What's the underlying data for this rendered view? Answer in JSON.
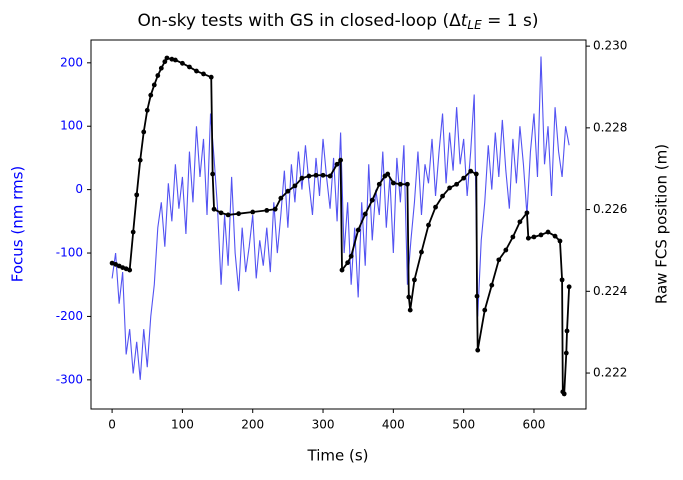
{
  "chart_data": {
    "type": "line",
    "title": {
      "text": "On-sky tests with GS in closed-loop (Δ",
      "var": "t",
      "sub": "LE",
      "end": " = 1 s)"
    },
    "xlabel": "Time (s)",
    "ylabel": "Focus (nm rms)",
    "y2label": "Raw FCS position (m)",
    "y_axis_color": "#0000ff",
    "xlim": [
      -30,
      674
    ],
    "xticks": [
      0,
      100,
      200,
      300,
      400,
      500,
      600
    ],
    "ylim": [
      -346,
      236
    ],
    "yticks": [
      -300,
      -200,
      -100,
      0,
      100,
      200
    ],
    "y2lim": [
      0.22112,
      0.23015
    ],
    "y2ticks": [
      0.222,
      0.224,
      0.226,
      0.228,
      {
        "value": 0.23,
        "label": "0.230"
      }
    ],
    "series": [
      {
        "color": "#3535f0",
        "x": [
          0,
          5,
          10,
          15,
          20,
          25,
          30,
          35,
          40,
          45,
          50,
          55,
          60,
          65,
          70,
          75,
          80,
          85,
          90,
          95,
          100,
          105,
          110,
          115,
          120,
          125,
          130,
          135,
          140,
          145,
          150,
          155,
          160,
          165,
          170,
          175,
          180,
          185,
          190,
          195,
          200,
          205,
          210,
          215,
          220,
          225,
          230,
          235,
          240,
          245,
          250,
          255,
          260,
          265,
          270,
          275,
          280,
          285,
          290,
          295,
          300,
          305,
          310,
          315,
          320,
          325,
          330,
          335,
          340,
          345,
          350,
          355,
          360,
          365,
          370,
          375,
          380,
          385,
          390,
          395,
          400,
          405,
          410,
          415,
          420,
          425,
          430,
          435,
          440,
          445,
          450,
          455,
          460,
          465,
          470,
          475,
          480,
          485,
          490,
          495,
          500,
          505,
          510,
          515,
          520,
          525,
          530,
          535,
          540,
          545,
          550,
          555,
          560,
          565,
          570,
          575,
          580,
          585,
          590,
          595,
          600,
          605,
          610,
          615,
          620,
          625,
          630,
          635,
          640,
          645,
          650
        ],
        "values": [
          -140,
          -100,
          -180,
          -130,
          -260,
          -220,
          -290,
          -240,
          -300,
          -220,
          -280,
          -200,
          -150,
          -60,
          -20,
          -90,
          10,
          -50,
          40,
          -30,
          20,
          -70,
          60,
          -20,
          100,
          20,
          80,
          -40,
          120,
          50,
          -30,
          -150,
          -40,
          -120,
          20,
          -100,
          -160,
          -60,
          -130,
          -90,
          -40,
          -140,
          -80,
          -120,
          -60,
          -130,
          -20,
          -100,
          -40,
          30,
          -60,
          40,
          -20,
          60,
          0,
          70,
          10,
          -40,
          50,
          -10,
          80,
          20,
          -30,
          50,
          -50,
          90,
          -100,
          -20,
          -150,
          -60,
          -170,
          -20,
          -120,
          40,
          -80,
          0,
          -40,
          60,
          -60,
          20,
          -100,
          50,
          -20,
          70,
          -150,
          -80,
          -20,
          60,
          -40,
          40,
          10,
          80,
          -10,
          60,
          120,
          10,
          90,
          30,
          130,
          40,
          80,
          -10,
          60,
          150,
          -200,
          -80,
          -20,
          70,
          0,
          90,
          20,
          110,
          30,
          -30,
          80,
          10,
          100,
          40,
          -40,
          60,
          120,
          20,
          210,
          40,
          100,
          -10,
          130,
          60,
          20,
          100,
          70
        ]
      },
      {
        "color": "#000000",
        "axis": "y2",
        "x": [
          0,
          5,
          10,
          15,
          20,
          25,
          30,
          35,
          40,
          45,
          50,
          55,
          60,
          65,
          70,
          75,
          78,
          85,
          90,
          100,
          110,
          120,
          130,
          141,
          143,
          145,
          155,
          165,
          180,
          200,
          220,
          232,
          240,
          250,
          260,
          270,
          280,
          290,
          300,
          310,
          320,
          325,
          327,
          335,
          340,
          350,
          360,
          370,
          380,
          388,
          392,
          400,
          410,
          420,
          422,
          424,
          430,
          440,
          450,
          460,
          470,
          480,
          490,
          500,
          510,
          518,
          519,
          520,
          530,
          540,
          550,
          560,
          570,
          580,
          590,
          592,
          600,
          610,
          620,
          630,
          637,
          640,
          641,
          643,
          646,
          647,
          650
        ],
        "values": [
          0.22469,
          0.22466,
          0.22462,
          0.22458,
          0.22455,
          0.22452,
          0.22545,
          0.22636,
          0.22721,
          0.2279,
          0.22843,
          0.2288,
          0.22905,
          0.22928,
          0.22946,
          0.22962,
          0.22971,
          0.22968,
          0.22966,
          0.22958,
          0.22949,
          0.22939,
          0.22932,
          0.22924,
          0.22687,
          0.22601,
          0.22592,
          0.22587,
          0.2259,
          0.22594,
          0.22598,
          0.22601,
          0.22628,
          0.22645,
          0.22658,
          0.22677,
          0.22682,
          0.22684,
          0.22684,
          0.22682,
          0.22711,
          0.22721,
          0.22452,
          0.2247,
          0.22486,
          0.2255,
          0.22589,
          0.22623,
          0.22662,
          0.22682,
          0.22687,
          0.22665,
          0.22662,
          0.22662,
          0.22386,
          0.22354,
          0.22428,
          0.22496,
          0.22562,
          0.22606,
          0.22633,
          0.22653,
          0.22662,
          0.22677,
          0.22694,
          0.22687,
          0.22388,
          0.22256,
          0.22354,
          0.22415,
          0.22477,
          0.22501,
          0.22533,
          0.2257,
          0.22592,
          0.2253,
          0.22533,
          0.22538,
          0.22545,
          0.22535,
          0.22523,
          0.22428,
          0.22154,
          0.22149,
          0.22249,
          0.22303,
          0.22411
        ]
      }
    ]
  }
}
